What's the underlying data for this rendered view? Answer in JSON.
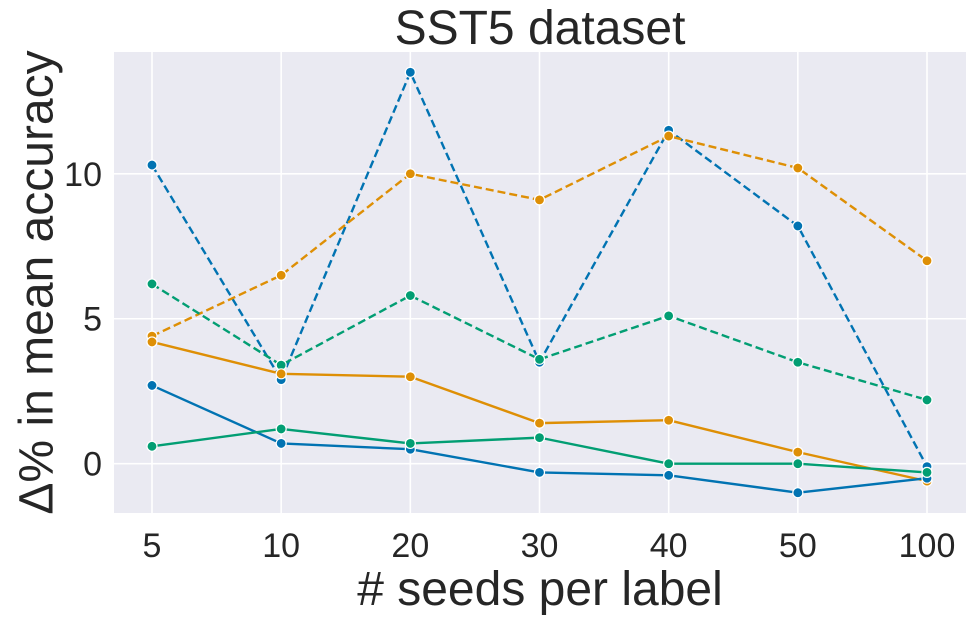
{
  "chart_data": {
    "type": "line",
    "title": "SST5 dataset",
    "xlabel": "# seeds per label",
    "ylabel": "Δ% in mean accuracy",
    "categories": [
      "5",
      "10",
      "20",
      "30",
      "40",
      "50",
      "100"
    ],
    "yticks": [
      "0",
      "5",
      "10"
    ],
    "ylim": [
      -1.7,
      14.2
    ],
    "grid": true,
    "legend": "none",
    "background_color": "#EAEAF2",
    "grid_color": "#FFFFFF",
    "series": [
      {
        "color": "#0173B2",
        "dashed": true,
        "values": [
          10.3,
          2.9,
          13.5,
          3.5,
          11.5,
          8.2,
          -0.1
        ]
      },
      {
        "color": "#DE8F05",
        "dashed": true,
        "values": [
          4.4,
          6.5,
          10.0,
          9.1,
          11.3,
          10.2,
          7.0
        ]
      },
      {
        "color": "#029E73",
        "dashed": true,
        "values": [
          6.2,
          3.4,
          5.8,
          3.6,
          5.1,
          3.5,
          2.2
        ]
      },
      {
        "color": "#DE8F05",
        "dashed": false,
        "values": [
          4.2,
          3.1,
          3.0,
          1.4,
          1.5,
          0.4,
          -0.6
        ]
      },
      {
        "color": "#0173B2",
        "dashed": false,
        "values": [
          2.7,
          0.7,
          0.5,
          -0.3,
          -0.4,
          -1.0,
          -0.5
        ]
      },
      {
        "color": "#029E73",
        "dashed": false,
        "values": [
          0.6,
          1.2,
          0.7,
          0.9,
          0.0,
          0.0,
          -0.3
        ]
      }
    ]
  }
}
